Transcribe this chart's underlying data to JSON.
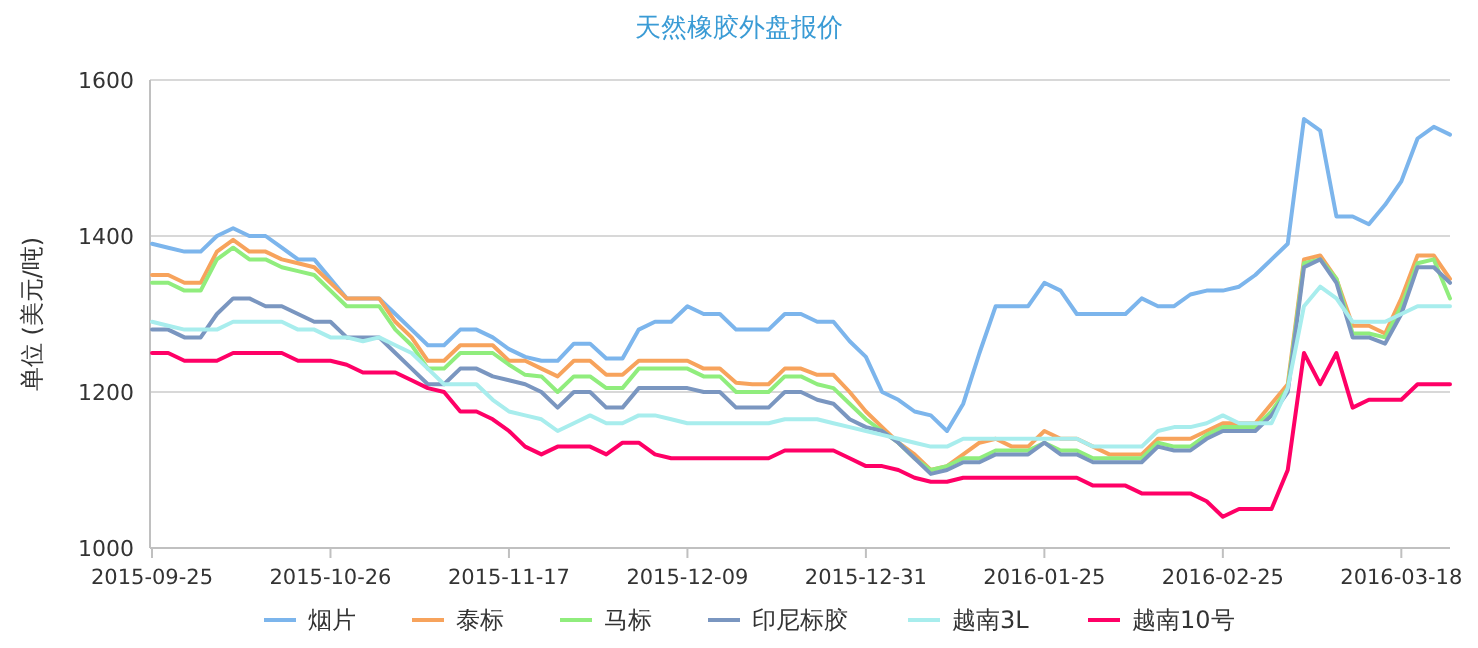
{
  "chart_data": {
    "type": "line",
    "title": "天然橡胶外盘报价",
    "ylabel": "单位 (美元/吨)",
    "categories": [
      "2015-09-25",
      null,
      null,
      null,
      null,
      null,
      null,
      null,
      null,
      null,
      null,
      "2015-10-26",
      null,
      null,
      null,
      null,
      null,
      null,
      null,
      null,
      null,
      null,
      "2015-11-17",
      null,
      null,
      null,
      null,
      null,
      null,
      null,
      null,
      null,
      null,
      "2015-12-09",
      null,
      null,
      null,
      null,
      null,
      null,
      null,
      null,
      null,
      null,
      "2015-12-31",
      null,
      null,
      null,
      null,
      null,
      null,
      null,
      null,
      null,
      null,
      "2016-01-25",
      null,
      null,
      null,
      null,
      null,
      null,
      null,
      null,
      null,
      null,
      "2016-02-25",
      null,
      null,
      null,
      null,
      null,
      null,
      null,
      null,
      null,
      null,
      "2016-03-18",
      null,
      null,
      null
    ],
    "ylim": [
      1000,
      1600
    ],
    "yticks": [
      1000,
      1200,
      1400,
      1600
    ],
    "grid": "y",
    "legend": "bottom",
    "marker": "none",
    "line_style": "solid",
    "series": [
      {
        "name": "烟片",
        "color": "#7cb5ec",
        "values": [
          1390,
          1385,
          1380,
          1380,
          1400,
          1410,
          1400,
          1400,
          1385,
          1370,
          1370,
          1345,
          1320,
          1320,
          1320,
          1300,
          1280,
          1260,
          1260,
          1280,
          1280,
          1270,
          1255,
          1245,
          1240,
          1240,
          1262,
          1262,
          1243,
          1243,
          1280,
          1290,
          1290,
          1310,
          1300,
          1300,
          1280,
          1280,
          1280,
          1300,
          1300,
          1290,
          1290,
          1265,
          1245,
          1200,
          1190,
          1175,
          1170,
          1150,
          1185,
          1250,
          1310,
          1310,
          1310,
          1340,
          1330,
          1300,
          1300,
          1300,
          1300,
          1320,
          1310,
          1310,
          1325,
          1330,
          1330,
          1335,
          1350,
          1370,
          1390,
          1550,
          1535,
          1425,
          1425,
          1415,
          1440,
          1470,
          1525,
          1540,
          1530
        ]
      },
      {
        "name": "泰标",
        "color": "#f7a35c",
        "values": [
          1350,
          1350,
          1340,
          1340,
          1380,
          1395,
          1380,
          1380,
          1370,
          1365,
          1360,
          1340,
          1320,
          1320,
          1320,
          1290,
          1270,
          1240,
          1240,
          1260,
          1260,
          1260,
          1240,
          1240,
          1230,
          1220,
          1240,
          1240,
          1222,
          1222,
          1240,
          1240,
          1240,
          1240,
          1230,
          1230,
          1212,
          1210,
          1210,
          1230,
          1230,
          1222,
          1222,
          1200,
          1175,
          1155,
          1135,
          1120,
          1100,
          1105,
          1120,
          1135,
          1140,
          1130,
          1130,
          1150,
          1140,
          1140,
          1130,
          1120,
          1120,
          1120,
          1140,
          1140,
          1140,
          1150,
          1160,
          1160,
          1160,
          1185,
          1210,
          1370,
          1375,
          1345,
          1285,
          1285,
          1275,
          1320,
          1375,
          1375,
          1345
        ]
      },
      {
        "name": "马标",
        "color": "#90ed7d",
        "values": [
          1340,
          1340,
          1330,
          1330,
          1370,
          1385,
          1370,
          1370,
          1360,
          1355,
          1350,
          1330,
          1310,
          1310,
          1310,
          1280,
          1260,
          1230,
          1230,
          1250,
          1250,
          1250,
          1235,
          1222,
          1220,
          1200,
          1220,
          1220,
          1205,
          1205,
          1230,
          1230,
          1230,
          1230,
          1220,
          1220,
          1200,
          1200,
          1200,
          1220,
          1220,
          1210,
          1205,
          1185,
          1165,
          1150,
          1135,
          1115,
          1100,
          1105,
          1115,
          1115,
          1125,
          1125,
          1125,
          1135,
          1125,
          1125,
          1115,
          1115,
          1115,
          1115,
          1135,
          1130,
          1130,
          1145,
          1155,
          1155,
          1155,
          1175,
          1205,
          1365,
          1370,
          1345,
          1275,
          1275,
          1270,
          1310,
          1365,
          1370,
          1320
        ]
      },
      {
        "name": "印尼标胶",
        "color": "#7a96c0",
        "values": [
          1280,
          1280,
          1270,
          1270,
          1300,
          1320,
          1320,
          1310,
          1310,
          1300,
          1290,
          1290,
          1270,
          1270,
          1270,
          1250,
          1230,
          1210,
          1210,
          1230,
          1230,
          1220,
          1215,
          1210,
          1200,
          1180,
          1200,
          1200,
          1180,
          1180,
          1205,
          1205,
          1205,
          1205,
          1200,
          1200,
          1180,
          1180,
          1180,
          1200,
          1200,
          1190,
          1185,
          1165,
          1155,
          1150,
          1135,
          1115,
          1095,
          1100,
          1110,
          1110,
          1120,
          1120,
          1120,
          1135,
          1120,
          1120,
          1110,
          1110,
          1110,
          1110,
          1130,
          1125,
          1125,
          1140,
          1150,
          1150,
          1150,
          1170,
          1200,
          1360,
          1370,
          1340,
          1270,
          1270,
          1262,
          1300,
          1360,
          1360,
          1340
        ]
      },
      {
        "name": "越南3L",
        "color": "#a8eded",
        "values": [
          1290,
          1285,
          1280,
          1280,
          1280,
          1290,
          1290,
          1290,
          1290,
          1280,
          1280,
          1270,
          1270,
          1265,
          1270,
          1260,
          1250,
          1230,
          1210,
          1210,
          1210,
          1190,
          1175,
          1170,
          1165,
          1150,
          1160,
          1170,
          1160,
          1160,
          1170,
          1170,
          1165,
          1160,
          1160,
          1160,
          1160,
          1160,
          1160,
          1165,
          1165,
          1165,
          1160,
          1155,
          1150,
          1145,
          1140,
          1135,
          1130,
          1130,
          1140,
          1140,
          1140,
          1140,
          1140,
          1140,
          1140,
          1140,
          1130,
          1130,
          1130,
          1130,
          1150,
          1155,
          1155,
          1160,
          1170,
          1160,
          1160,
          1160,
          1205,
          1310,
          1335,
          1320,
          1290,
          1290,
          1290,
          1300,
          1310,
          1310,
          1310
        ]
      },
      {
        "name": "越南10号",
        "color": "#ff0066",
        "values": [
          1250,
          1250,
          1240,
          1240,
          1240,
          1250,
          1250,
          1250,
          1250,
          1240,
          1240,
          1240,
          1235,
          1225,
          1225,
          1225,
          1215,
          1205,
          1200,
          1175,
          1175,
          1165,
          1150,
          1130,
          1120,
          1130,
          1130,
          1130,
          1120,
          1135,
          1135,
          1120,
          1115,
          1115,
          1115,
          1115,
          1115,
          1115,
          1115,
          1125,
          1125,
          1125,
          1125,
          1115,
          1105,
          1105,
          1100,
          1090,
          1085,
          1085,
          1090,
          1090,
          1090,
          1090,
          1090,
          1090,
          1090,
          1090,
          1080,
          1080,
          1080,
          1070,
          1070,
          1070,
          1070,
          1060,
          1040,
          1050,
          1050,
          1050,
          1100,
          1250,
          1210,
          1250,
          1180,
          1190,
          1190,
          1190,
          1210,
          1210,
          1210
        ]
      }
    ]
  }
}
